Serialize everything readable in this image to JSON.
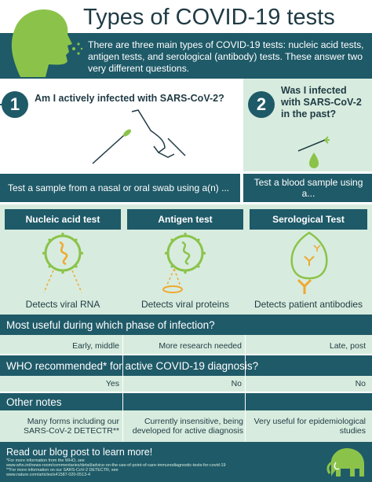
{
  "header": {
    "title": "Types of COVID-19 tests",
    "intro": "There are three main types of COVID-19 tests: nucleic acid tests, antigen tests, and serological (antibody) tests. These answer two very different questions."
  },
  "questions": [
    {
      "number": "1",
      "text": "Am I actively infected with SARS-CoV-2?"
    },
    {
      "number": "2",
      "text": "Was I infected with SARS-CoV-2 in the past?"
    }
  ],
  "sample_bars": {
    "swab": "Test a sample from a nasal or oral swab using a(n) ...",
    "blood": "Test a blood sample using a..."
  },
  "tests": [
    {
      "name": "Nucleic acid test",
      "detects": "Detects viral RNA"
    },
    {
      "name": "Antigen test",
      "detects": "Detects viral proteins"
    },
    {
      "name": "Serological Test",
      "detects": "Detects patient antibodies"
    }
  ],
  "rows": [
    {
      "heading": "Most useful during which phase of infection?",
      "cells": [
        "Early, middle",
        "More research needed",
        "Late, post"
      ]
    },
    {
      "heading": "WHO recommended* for active COVID-19 diagnosis?",
      "cells": [
        "Yes",
        "No",
        "No"
      ]
    },
    {
      "heading": "Other notes",
      "cells": [
        "Many forms including our SARS-CoV-2 DETECTR**",
        "Currently insensitive, being developed for active diagnosis",
        "Very useful for epidemiological studies"
      ]
    }
  ],
  "footer": {
    "title": "Read our blog post to learn more!",
    "notes": [
      "*For more information from the WHO, see",
      "www.who.int/news-room/commentaries/detail/advice-on-the-use-of-point-of-care-immunodiagnostic-tests-for-covid-19",
      "**For more information on our SARS-CoV-2 DETECTR, see",
      "www.nature.com/articles/s41587-020-0513-4"
    ]
  },
  "colors": {
    "teal": "#1f5a68",
    "mint": "#d7ecde",
    "green": "#8bc34a",
    "orange": "#f0a830"
  }
}
